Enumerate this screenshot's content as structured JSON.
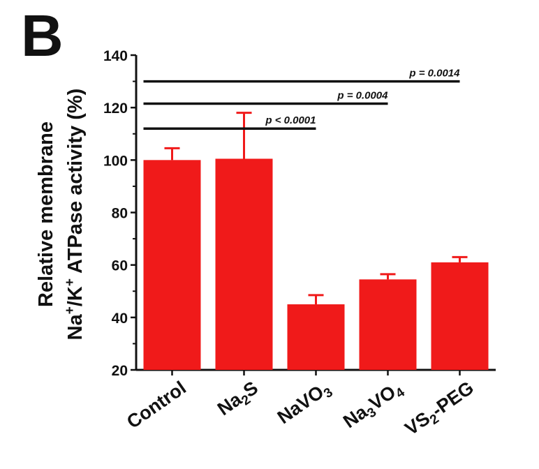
{
  "panel_label": "B",
  "chart_data": {
    "type": "bar",
    "categories": [
      "Control",
      "Na2S",
      "NaVO3",
      "Na3VO4",
      "VS2-PEG"
    ],
    "category_parts": [
      [
        {
          "t": "Control"
        }
      ],
      [
        {
          "t": "Na"
        },
        {
          "t": "2",
          "sub": true
        },
        {
          "t": "S"
        }
      ],
      [
        {
          "t": "NaVO"
        },
        {
          "t": "3",
          "sub": true
        }
      ],
      [
        {
          "t": "Na"
        },
        {
          "t": "3",
          "sub": true
        },
        {
          "t": "VO"
        },
        {
          "t": "4",
          "sub": true
        }
      ],
      [
        {
          "t": "VS"
        },
        {
          "t": "2",
          "sub": true
        },
        {
          "t": "-PEG"
        }
      ]
    ],
    "values": [
      100,
      100.5,
      45,
      54.5,
      61
    ],
    "errors": [
      4.5,
      17.5,
      3.5,
      2,
      2
    ],
    "bar_color": "#f01a1a",
    "ylabel_line1": "Relative membrane",
    "ylabel_line2": [
      "Na",
      "+",
      "/K",
      "+",
      " ATPase activity (%)"
    ],
    "ylim": [
      20,
      140
    ],
    "yticks": [
      20,
      40,
      60,
      80,
      100,
      120,
      140
    ],
    "significance": [
      {
        "from": 0,
        "to": 2,
        "y": 112,
        "label": "p < 0.0001"
      },
      {
        "from": 0,
        "to": 3,
        "y": 121.5,
        "label": "p = 0.0004"
      },
      {
        "from": 0,
        "to": 4,
        "y": 130,
        "label": "p = 0.0014"
      }
    ]
  }
}
